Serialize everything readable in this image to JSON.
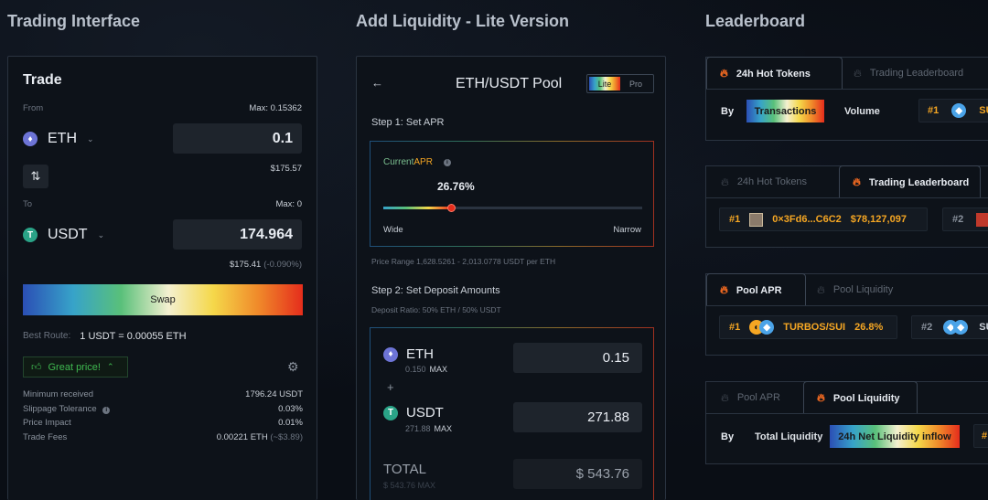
{
  "titles": {
    "trading": "Trading Interface",
    "liquidity": "Add Liquidity - Lite Version",
    "leaderboard": "Leaderboard"
  },
  "trade": {
    "heading": "Trade",
    "from_label": "From",
    "max_from": "Max: 0.15362",
    "from_token": "ETH",
    "from_amount": "0.1",
    "from_usd": "$175.57",
    "switch_glyph": "⇅",
    "to_label": "To",
    "max_to": "Max: 0",
    "to_token": "USDT",
    "to_amount": "174.964",
    "to_usd": "$175.41",
    "to_change": "(-0.090%)",
    "swap_label": "Swap",
    "best_route_label": "Best Route:",
    "best_route_value": "1 USDT = 0.00055 ETH",
    "great_price": "Great price!",
    "details": [
      {
        "label": "Minimum received",
        "value": "1796.24 USDT"
      },
      {
        "label": "Slippage Tolerance",
        "value": "0.03%"
      },
      {
        "label": "Price Impact",
        "value": "0.01%"
      },
      {
        "label": "Trade Fees",
        "value": "0.00221 ETH",
        "extra": "(~$3.89)"
      }
    ]
  },
  "liquidity": {
    "back_glyph": "←",
    "pool_title": "ETH/USDT Pool",
    "mode_lite": "Lite",
    "mode_pro": "Pro",
    "step1": "Step 1: Set APR",
    "current_apr_label_a": "Current ",
    "current_apr_label_b": "APR",
    "apr_value": "26.76%",
    "apr_fraction": 0.26,
    "slider_left": "Wide",
    "slider_right": "Narrow",
    "price_range": "Price Range 1,628.5261 - 2,013.0778 USDT per ETH",
    "step2": "Step 2: Set Deposit Amounts",
    "deposit_ratio": "Deposit Ratio: 50% ETH / 50% USDT",
    "eth_label": "ETH",
    "eth_max_amt": "0.150",
    "eth_max_word": "MAX",
    "eth_value": "0.15",
    "plus": "+",
    "usdt_label": "USDT",
    "usdt_max_amt": "271.88",
    "usdt_max_word": "MAX",
    "usdt_value": "271.88",
    "total_label": "TOTAL",
    "total_sub": "$ 543.76 MAX",
    "total_value": "$ 543.76"
  },
  "leaderboard": {
    "card1": {
      "tab_active": "24h Hot Tokens",
      "tab_inactive": "Trading Leaderboard",
      "by": "By",
      "opt_active": "Transactions",
      "opt_inactive": "Volume",
      "rank": "#1",
      "token": "SU"
    },
    "card2": {
      "tab_inactive": "24h Hot Tokens",
      "tab_active": "Trading Leaderboard",
      "rank": "#1",
      "address": "0×3Fd6...C6C2",
      "amount": "$78,127,097",
      "rank2": "#2"
    },
    "card3": {
      "tab_active": "Pool APR",
      "tab_inactive": "Pool Liquidity",
      "rank": "#1",
      "pair": "TURBOS/SUI",
      "apr": "26.8%",
      "rank2": "#2",
      "pair2": "SU"
    },
    "card4": {
      "tab_inactive": "Pool APR",
      "tab_active": "Pool Liquidity",
      "by": "By",
      "opt_inactive": "Total Liquidity",
      "opt_active": "24h Net Liquidity inflow"
    }
  },
  "colors": {
    "accent_orange": "#f36a21",
    "good_green": "#3fb950",
    "apr_orange": "#f5a623"
  }
}
